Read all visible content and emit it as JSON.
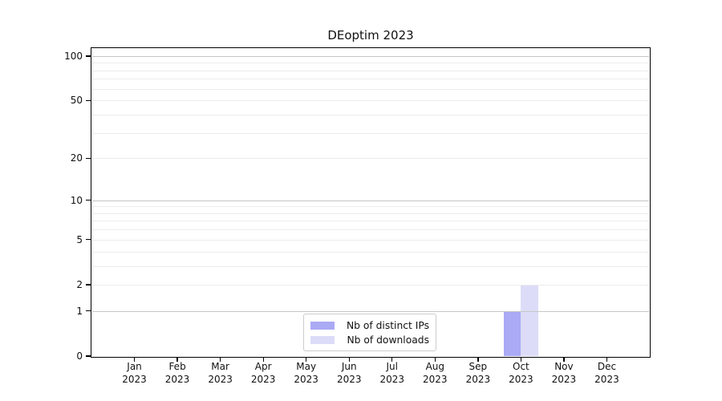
{
  "chart_data": {
    "type": "bar",
    "title": "DEoptim 2023",
    "categories": [
      "Jan",
      "Feb",
      "Mar",
      "Apr",
      "May",
      "Jun",
      "Jul",
      "Aug",
      "Sep",
      "Oct",
      "Nov",
      "Dec"
    ],
    "x_year_label": "2023",
    "series": [
      {
        "name": "Nb of distinct IPs",
        "color": "#aaaaf5",
        "values": [
          0,
          0,
          0,
          0,
          0,
          0,
          0,
          0,
          0,
          1,
          0,
          0
        ]
      },
      {
        "name": "Nb of downloads",
        "color": "#dcdcf8",
        "values": [
          0,
          0,
          0,
          0,
          0,
          0,
          0,
          0,
          0,
          2,
          0,
          0
        ]
      }
    ],
    "xlabel": "",
    "ylabel": "",
    "y_scale": "log1p",
    "ylim": [
      0,
      113
    ],
    "y_ticks": [
      0,
      1,
      2,
      5,
      10,
      20,
      50,
      100
    ],
    "y_minor_gridlines": [
      3,
      4,
      6,
      7,
      8,
      9,
      30,
      40,
      60,
      70,
      80,
      90
    ],
    "y_decade_gridlines": [
      1,
      10,
      100
    ],
    "grid": {
      "decade_color": "#c6c6c6",
      "minor_color": "#ececec"
    },
    "legend": {
      "position": "bottom-center",
      "background": "#ffffff",
      "border_color": "#cccccc"
    }
  }
}
